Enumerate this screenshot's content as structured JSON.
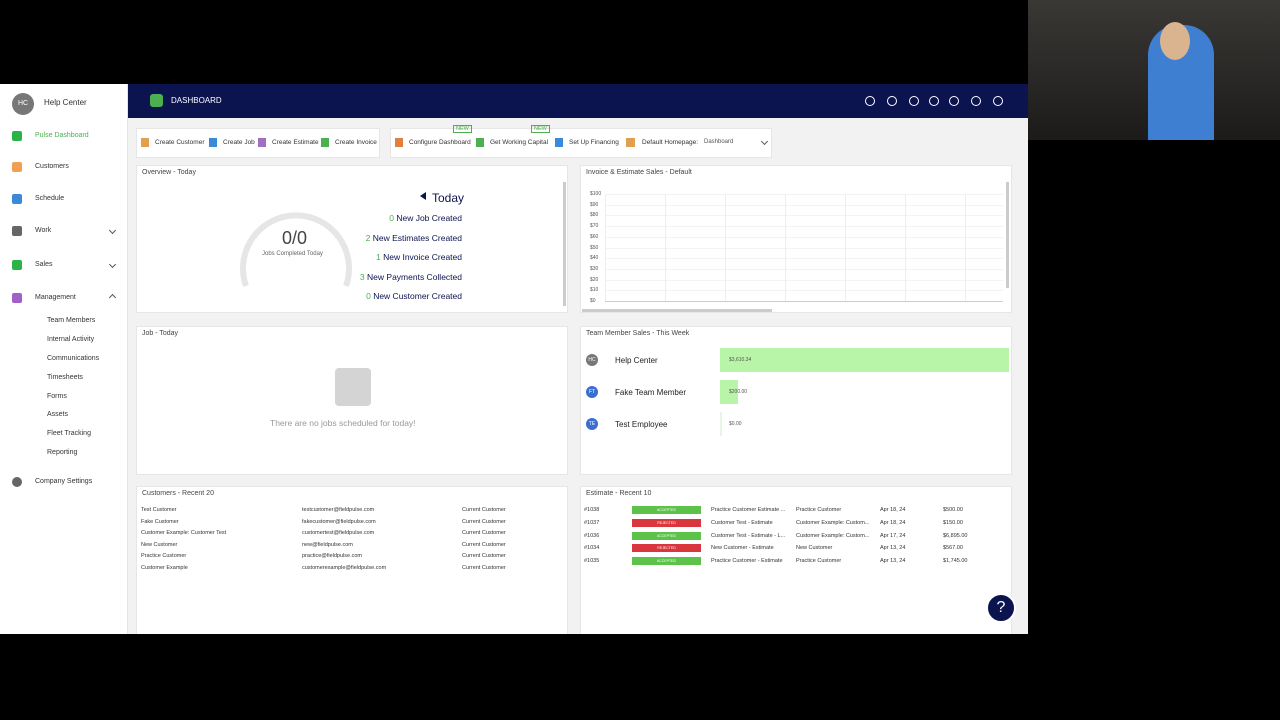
{
  "sidebar": {
    "initials": "HC",
    "user": "Help Center",
    "nav": [
      "Pulse Dashboard",
      "Customers",
      "Schedule",
      "Work",
      "Sales",
      "Management"
    ],
    "submenu": [
      "Team Members",
      "Internal Activity",
      "Communications",
      "Timesheets",
      "Forms",
      "Assets",
      "Fleet Tracking",
      "Reporting"
    ],
    "settings": "Company Settings"
  },
  "header": {
    "title": "DASHBOARD"
  },
  "toolbar": {
    "create": [
      "Create Customer",
      "Create Job",
      "Create Estimate",
      "Create Invoice"
    ],
    "actions": [
      "Configure Dashboard",
      "Get Working Capital",
      "Set Up Financing"
    ],
    "badge": "NEW",
    "homepage_label": "Default Homepage:",
    "homepage_value": "Dashboard"
  },
  "overview": {
    "title": "Overview - Today",
    "gauge": "0/0",
    "gauge_label": "Jobs Completed Today",
    "period": "Today",
    "stats": [
      [
        0,
        "New Job Created"
      ],
      [
        2,
        "New Estimates Created"
      ],
      [
        1,
        "New Invoice Created"
      ],
      [
        3,
        "New Payments Collected"
      ],
      [
        0,
        "New Customer Created"
      ]
    ]
  },
  "invoice_chart": {
    "title": "Invoice & Estimate Sales - Default",
    "yticks": [
      "$100",
      "$90",
      "$80",
      "$70",
      "$60",
      "$50",
      "$40",
      "$30",
      "$20",
      "$10",
      "$0"
    ]
  },
  "jobs": {
    "title": "Job - Today",
    "empty": "There are no jobs scheduled for today!"
  },
  "team_sales": {
    "title": "Team Member Sales - This Week",
    "members": [
      {
        "initials": "HC",
        "name": "Help Center",
        "value": 3610.34,
        "value_label": "$3,610.34"
      },
      {
        "initials": "FT",
        "name": "Fake Team Member",
        "value": 200,
        "value_label": "$200.00"
      },
      {
        "initials": "TE",
        "name": "Test Employee",
        "value": 0,
        "value_label": "$0.00"
      }
    ]
  },
  "customers": {
    "title": "Customers - Recent 20",
    "rows": [
      [
        "Test Customer",
        "testcustomer@fieldpulse.com",
        "Current Customer"
      ],
      [
        "Fake Customer",
        "fakecustomer@fieldpulse.com",
        "Current Customer"
      ],
      [
        "Customer Example: Customer Test",
        "customertest@fieldpulse.com",
        "Current Customer"
      ],
      [
        "New Customer",
        "new@fieldpulse.com",
        "Current Customer"
      ],
      [
        "Practice Customer",
        "practice@fieldpulse.com",
        "Current Customer"
      ],
      [
        "Customer Example",
        "customerexample@fieldpulse.com",
        "Current Customer"
      ]
    ]
  },
  "estimates": {
    "title": "Estimate - Recent 10",
    "rows": [
      [
        "#1038",
        "ACCEPTED",
        "Practice Customer Estimate ...",
        "Practice Customer",
        "Apr 18, 24",
        "$500.00"
      ],
      [
        "#1037",
        "REJECTED",
        "Customer Test - Estimate",
        "Customer Example: Custom...",
        "Apr 18, 24",
        "$150.00"
      ],
      [
        "#1036",
        "ACCEPTED",
        "Customer Test - Estimate - L...",
        "Customer Example: Custom...",
        "Apr 17, 24",
        "$6,895.00"
      ],
      [
        "#1034",
        "REJECTED",
        "New Customer - Estimate",
        "New Customer",
        "Apr 13, 24",
        "$567.00"
      ],
      [
        "#1035",
        "ACCEPTED",
        "Practice Customer - Estimate",
        "Practice Customer",
        "Apr 13, 24",
        "$1,745.00"
      ]
    ]
  }
}
